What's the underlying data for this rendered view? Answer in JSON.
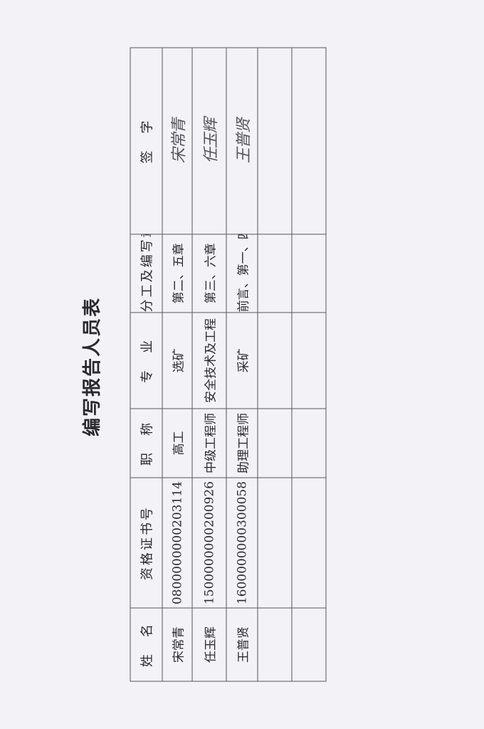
{
  "title": "编写报告人员表",
  "table": {
    "headers": [
      "姓　名",
      "资格证书号",
      "职　称",
      "专　业",
      "分工及编写章节",
      "签　字"
    ],
    "rows": [
      {
        "name": "宋常青",
        "cert": "0800000000203114",
        "title": "高工",
        "major": "选矿",
        "chapters": "第二、五章",
        "signature": "宋常青"
      },
      {
        "name": "任玉辉",
        "cert": "1500000000200926",
        "title": "中级工程师",
        "major": "安全技术及工程",
        "chapters": "第三、六章",
        "signature": "任玉辉"
      },
      {
        "name": "王普贤",
        "cert": "1600000000300058",
        "title": "助理工程师",
        "major": "采矿",
        "chapters": "前言、第一、四、八章",
        "signature": "王普贤"
      }
    ]
  }
}
